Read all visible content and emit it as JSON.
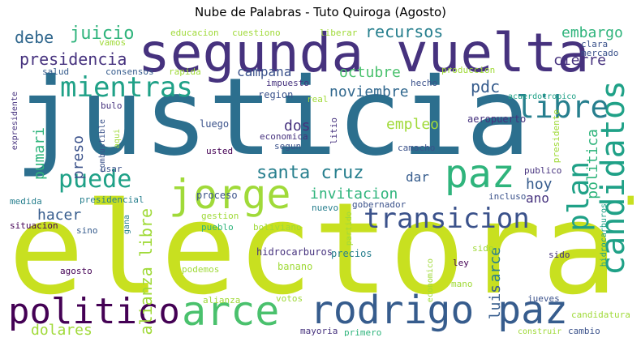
{
  "title": "Nube de Palabras - Tuto Quiroga (Agosto)",
  "palette": {
    "lime": "#c8e020",
    "yellowgreen": "#a0da39",
    "green": "#4ac16d",
    "teal": "#1fa187",
    "tealblue": "#277f8e",
    "steel": "#365c8d",
    "indigo": "#46327e",
    "purple": "#440154"
  },
  "words": [
    "justicia",
    "electoral",
    "segunda vuelta",
    "jorge",
    "arce",
    "rodrigo paz",
    "politico",
    "paz",
    "candidatos",
    "plan",
    "libre",
    "mientras",
    "transicion",
    "puede",
    "santa cruz",
    "presidencia",
    "debe",
    "juicio",
    "recursos",
    "embargo",
    "cierre",
    "octubre",
    "noviembre",
    "pdc",
    "campana",
    "invitacion",
    "hoy",
    "ano",
    "hacer",
    "dolares",
    "alianza libre",
    "luis",
    "politica",
    "empleo",
    "dos",
    "preso",
    "pumari",
    "dar",
    "educacion",
    "cuestiono",
    "liberar",
    "clara",
    "mercado",
    "vamos",
    "salud",
    "consensos",
    "rapida",
    "impuesto",
    "produccion",
    "hecho",
    "region",
    "real",
    "acuerdotropico",
    "bulo",
    "expresidente",
    "combustible",
    "aqui",
    "luego",
    "economica",
    "segun",
    "litio",
    "aeropuerto",
    "camacho",
    "usted",
    "usar",
    "presidente",
    "publico",
    "medida",
    "presidencial",
    "proceso",
    "gestion",
    "pueblo",
    "boliviano",
    "nuevo",
    "gobernador",
    "incluso",
    "situacion",
    "sino",
    "gana",
    "partido",
    "hidrocarburos",
    "precios",
    "acto",
    "economico",
    "sido",
    "agosto",
    "podemos",
    "banano",
    "ley",
    "mano",
    "alianza",
    "votos",
    "jueves",
    "candidatura",
    "mayoria",
    "primero",
    "construir",
    "cambio",
    "manana"
  ]
}
